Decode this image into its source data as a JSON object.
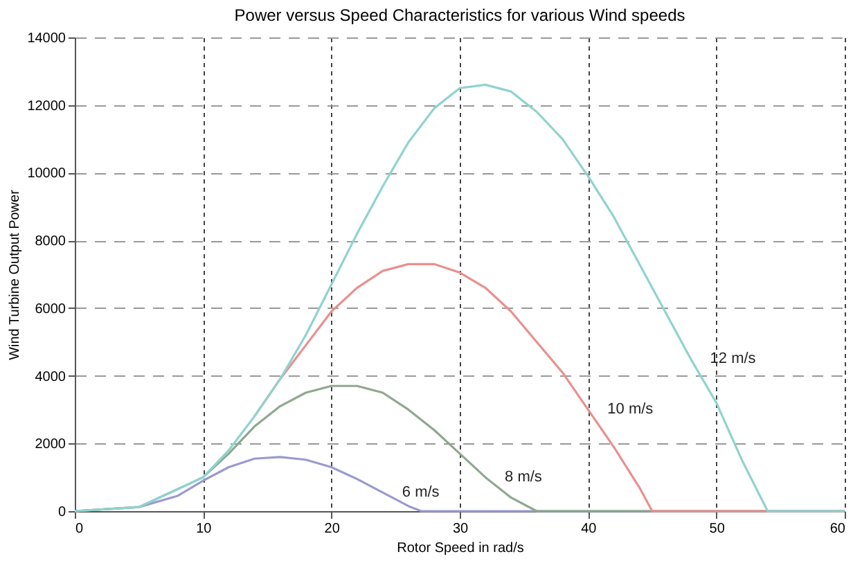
{
  "chart_data": {
    "type": "line",
    "title": "Power versus Speed Characteristics for various Wind speeds",
    "xlabel": "Rotor Speed in rad/s",
    "ylabel": "Wind Turbine Output Power",
    "xlim": [
      0,
      60
    ],
    "ylim": [
      0,
      14000
    ],
    "xticks": [
      0,
      10,
      20,
      30,
      40,
      50,
      60
    ],
    "yticks": [
      0,
      2000,
      4000,
      6000,
      8000,
      10000,
      12000,
      14000
    ],
    "grid": true,
    "marker": "none",
    "line_style": "solid",
    "series": [
      {
        "name": "6 m/s",
        "color": "#9a9ad0",
        "x": [
          0,
          5,
          8,
          10,
          12,
          14,
          16,
          18,
          20,
          22,
          24,
          26,
          27,
          60
        ],
        "values": [
          0,
          120,
          450,
          900,
          1300,
          1550,
          1600,
          1520,
          1300,
          950,
          550,
          150,
          0,
          0
        ]
      },
      {
        "name": "8 m/s",
        "color": "#8fa88f",
        "x": [
          0,
          5,
          10,
          12,
          14,
          16,
          18,
          20,
          22,
          24,
          26,
          28,
          30,
          32,
          34,
          36,
          60
        ],
        "values": [
          0,
          120,
          1000,
          1700,
          2500,
          3100,
          3500,
          3700,
          3700,
          3500,
          3000,
          2400,
          1700,
          1000,
          400,
          0,
          0
        ]
      },
      {
        "name": "10 m/s",
        "color": "#e89090",
        "x": [
          14,
          16,
          18,
          20,
          22,
          24,
          26,
          28,
          30,
          32,
          34,
          36,
          38,
          40,
          42,
          44,
          45,
          60
        ],
        "values": [
          2800,
          3900,
          4900,
          5900,
          6600,
          7100,
          7300,
          7300,
          7050,
          6600,
          5900,
          5000,
          4100,
          3000,
          1900,
          700,
          0,
          0
        ]
      },
      {
        "name": "12 m/s",
        "color": "#8fd3d0",
        "x": [
          0,
          5,
          10,
          12,
          14,
          16,
          18,
          20,
          22,
          24,
          26,
          28,
          30,
          32,
          34,
          36,
          38,
          40,
          42,
          44,
          46,
          48,
          50,
          52,
          54,
          60
        ],
        "values": [
          0,
          120,
          1000,
          1800,
          2800,
          3900,
          5200,
          6700,
          8200,
          9600,
          10900,
          11900,
          12500,
          12600,
          12400,
          11800,
          11000,
          9900,
          8700,
          7300,
          5900,
          4500,
          3200,
          1500,
          0,
          0
        ]
      }
    ]
  }
}
